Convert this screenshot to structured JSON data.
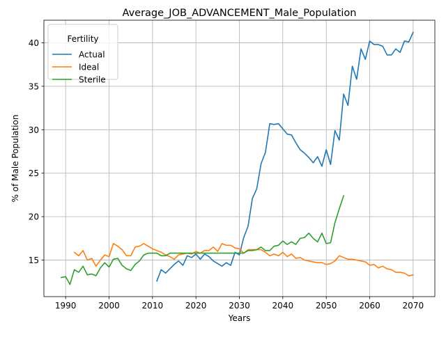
{
  "chart_data": {
    "type": "line",
    "title": "Average_JOB_ADVANCEMENT_Male_Population",
    "xlabel": "Years",
    "ylabel": "% of Male Population",
    "xlim": [
      1985,
      2075
    ],
    "ylim": [
      10.8,
      42.6
    ],
    "x_ticks": [
      1990,
      2000,
      2010,
      2020,
      2030,
      2040,
      2050,
      2060,
      2070
    ],
    "y_ticks": [
      15,
      20,
      25,
      30,
      35,
      40
    ],
    "grid": true,
    "legend": {
      "title": "Fertility",
      "placement": "upper-left"
    },
    "series": [
      {
        "name": "Actual",
        "color": "#1f77b4",
        "x": [
          2011,
          2012,
          2013,
          2014,
          2015,
          2016,
          2017,
          2018,
          2019,
          2020,
          2021,
          2022,
          2023,
          2024,
          2025,
          2026,
          2027,
          2028,
          2029,
          2030,
          2031,
          2032,
          2033,
          2034,
          2035,
          2036,
          2037,
          2038,
          2039,
          2040,
          2041,
          2042,
          2043,
          2044,
          2045,
          2046,
          2047,
          2048,
          2049,
          2050,
          2051,
          2052,
          2053,
          2054,
          2055,
          2056,
          2057,
          2058,
          2059,
          2060,
          2061,
          2062,
          2063,
          2064,
          2065,
          2066,
          2067,
          2068,
          2069,
          2070
        ],
        "values": [
          12.6,
          13.9,
          13.5,
          14.0,
          14.5,
          14.9,
          14.4,
          15.5,
          15.3,
          15.7,
          15.1,
          15.7,
          15.4,
          14.9,
          14.6,
          14.3,
          14.7,
          14.4,
          15.9,
          15.6,
          17.6,
          18.9,
          22.1,
          23.2,
          26.1,
          27.4,
          30.7,
          30.6,
          30.7,
          30.1,
          29.5,
          29.4,
          28.5,
          27.7,
          27.3,
          26.8,
          26.2,
          26.9,
          25.8,
          27.7,
          26.0,
          29.9,
          28.8,
          34.1,
          32.8,
          37.3,
          35.8,
          39.3,
          38.1,
          40.2,
          39.8,
          39.8,
          39.6,
          38.6,
          38.6,
          39.3,
          38.9,
          40.2,
          40.1,
          41.2
        ]
      },
      {
        "name": "Ideal",
        "color": "#ff7f0e",
        "x": [
          1992,
          1993,
          1994,
          1995,
          1996,
          1997,
          1998,
          1999,
          2000,
          2001,
          2002,
          2003,
          2004,
          2005,
          2006,
          2007,
          2008,
          2009,
          2010,
          2011,
          2012,
          2013,
          2014,
          2015,
          2016,
          2017,
          2018,
          2019,
          2020,
          2021,
          2022,
          2023,
          2024,
          2025,
          2026,
          2027,
          2028,
          2029,
          2030,
          2031,
          2032,
          2033,
          2034,
          2035,
          2036,
          2037,
          2038,
          2039,
          2040,
          2041,
          2042,
          2043,
          2044,
          2045,
          2046,
          2047,
          2048,
          2049,
          2050,
          2051,
          2052,
          2053,
          2054,
          2055,
          2056,
          2057,
          2058,
          2059,
          2060,
          2061,
          2062,
          2063,
          2064,
          2065,
          2066,
          2067,
          2068,
          2069,
          2070
        ],
        "values": [
          15.9,
          15.5,
          16.1,
          15.0,
          15.2,
          14.3,
          15.0,
          15.6,
          15.4,
          16.9,
          16.6,
          16.2,
          15.5,
          15.5,
          16.5,
          16.6,
          16.9,
          16.6,
          16.3,
          16.1,
          15.9,
          15.6,
          15.4,
          15.1,
          15.6,
          15.7,
          15.8,
          15.7,
          16.0,
          15.8,
          16.1,
          16.1,
          16.5,
          16.0,
          16.9,
          16.7,
          16.7,
          16.4,
          16.3,
          15.8,
          16.2,
          16.2,
          16.2,
          16.2,
          15.9,
          15.5,
          15.7,
          15.5,
          15.9,
          15.4,
          15.7,
          15.2,
          15.3,
          15.0,
          14.9,
          14.8,
          14.7,
          14.7,
          14.5,
          14.6,
          14.9,
          15.5,
          15.3,
          15.1,
          15.1,
          15.0,
          14.9,
          14.8,
          14.4,
          14.5,
          14.1,
          14.3,
          14.0,
          13.9,
          13.6,
          13.6,
          13.5,
          13.2,
          13.3
        ]
      },
      {
        "name": "Sterile",
        "color": "#2ca02c",
        "x": [
          1989,
          1990,
          1991,
          1992,
          1993,
          1994,
          1995,
          1996,
          1997,
          1998,
          1999,
          2000,
          2001,
          2002,
          2003,
          2004,
          2005,
          2006,
          2007,
          2008,
          2009,
          2010,
          2011,
          2012,
          2013,
          2014,
          2015,
          2016,
          2017,
          2018,
          2019,
          2020,
          2021,
          2022,
          2023,
          2024,
          2025,
          2026,
          2027,
          2028,
          2029,
          2030,
          2031,
          2032,
          2033,
          2034,
          2035,
          2036,
          2037,
          2038,
          2039,
          2040,
          2041,
          2042,
          2043,
          2044,
          2045,
          2046,
          2047,
          2048,
          2049,
          2050,
          2051,
          2052,
          2053,
          2054
        ],
        "values": [
          13.0,
          13.1,
          12.2,
          13.9,
          13.6,
          14.3,
          13.3,
          13.4,
          13.2,
          14.1,
          14.7,
          14.2,
          15.1,
          15.2,
          14.4,
          14.0,
          13.8,
          14.5,
          14.9,
          15.6,
          15.8,
          15.8,
          15.8,
          15.5,
          15.5,
          15.8,
          15.8,
          15.8,
          15.8,
          15.8,
          15.8,
          15.8,
          15.8,
          15.8,
          15.8,
          15.8,
          15.8,
          15.8,
          15.8,
          15.8,
          15.8,
          15.8,
          15.8,
          16.1,
          16.1,
          16.2,
          16.5,
          16.1,
          16.1,
          16.6,
          16.7,
          17.2,
          16.8,
          17.1,
          16.8,
          17.5,
          17.6,
          18.1,
          17.5,
          17.1,
          18.1,
          16.9,
          17.0,
          19.3,
          20.9,
          22.4
        ]
      }
    ]
  }
}
